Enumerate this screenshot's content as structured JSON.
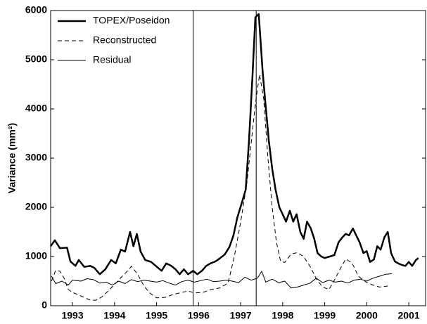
{
  "chart_data": {
    "type": "line",
    "y_label": "Variance (mm²)",
    "xlim": [
      1992.48,
      2001.4
    ],
    "xticks": [
      1993,
      1994,
      1995,
      1996,
      1997,
      1998,
      1999,
      2000,
      2001
    ],
    "ylim": [
      0,
      6000
    ],
    "yticks": [
      0,
      1000,
      2000,
      3000,
      4000,
      5000,
      6000
    ],
    "vlines": [
      1995.87,
      1997.37
    ],
    "legend": "upper left",
    "series": [
      {
        "name": "TOPEX/Poseidon",
        "color": "#000000",
        "style": "solid",
        "width": 2.5,
        "x": [
          1992.48,
          1992.58,
          1992.7,
          1992.87,
          1992.95,
          1993.07,
          1993.15,
          1993.28,
          1993.42,
          1993.52,
          1993.65,
          1993.78,
          1993.92,
          1994.03,
          1994.15,
          1994.25,
          1994.37,
          1994.45,
          1994.53,
          1994.62,
          1994.73,
          1994.87,
          1994.98,
          1995.12,
          1995.23,
          1995.35,
          1995.45,
          1995.55,
          1995.65,
          1995.75,
          1995.87,
          1995.97,
          1996.08,
          1996.18,
          1996.28,
          1996.4,
          1996.5,
          1996.62,
          1996.73,
          1996.83,
          1996.92,
          1997.02,
          1997.12,
          1997.2,
          1997.28,
          1997.35,
          1997.43,
          1997.52,
          1997.58,
          1997.67,
          1997.75,
          1997.83,
          1997.92,
          1998.0,
          1998.08,
          1998.17,
          1998.25,
          1998.33,
          1998.42,
          1998.5,
          1998.58,
          1998.67,
          1998.75,
          1998.83,
          1998.92,
          1999.0,
          1999.12,
          1999.23,
          1999.33,
          1999.42,
          1999.5,
          1999.58,
          1999.67,
          1999.75,
          1999.83,
          1999.92,
          2000.0,
          2000.08,
          2000.17,
          2000.25,
          2000.33,
          2000.42,
          2000.5,
          2000.58,
          2000.67,
          2000.75,
          2000.83,
          2000.92,
          2001.0,
          2001.08,
          2001.17,
          2001.23
        ],
        "values": [
          1210,
          1330,
          1170,
          1180,
          900,
          810,
          930,
          790,
          810,
          770,
          640,
          740,
          930,
          860,
          1140,
          1100,
          1500,
          1210,
          1460,
          1100,
          930,
          890,
          810,
          710,
          860,
          810,
          740,
          640,
          740,
          640,
          710,
          640,
          710,
          810,
          860,
          900,
          960,
          1040,
          1190,
          1430,
          1790,
          2070,
          2360,
          3360,
          4640,
          5860,
          5930,
          4790,
          4210,
          3360,
          2790,
          2360,
          2000,
          1860,
          1710,
          1930,
          1710,
          1860,
          1500,
          1360,
          1710,
          1570,
          1360,
          1070,
          1000,
          970,
          1000,
          1030,
          1290,
          1390,
          1460,
          1430,
          1570,
          1430,
          1290,
          1070,
          1110,
          890,
          940,
          1210,
          1140,
          1390,
          1500,
          1070,
          900,
          860,
          830,
          810,
          890,
          810,
          930,
          970
        ]
      },
      {
        "name": "Reconstructed",
        "color": "#000000",
        "style": "dashed",
        "width": 1,
        "x": [
          1992.5,
          1992.6,
          1992.7,
          1992.8,
          1992.9,
          1993.0,
          1993.2,
          1993.4,
          1993.55,
          1993.7,
          1993.85,
          1994.0,
          1994.15,
          1994.3,
          1994.4,
          1994.55,
          1994.7,
          1994.85,
          1995.0,
          1995.2,
          1995.4,
          1995.6,
          1995.75,
          1995.9,
          1996.1,
          1996.3,
          1996.5,
          1996.7,
          1996.85,
          1997.0,
          1997.15,
          1997.25,
          1997.35,
          1997.45,
          1997.55,
          1997.65,
          1997.75,
          1997.85,
          1997.95,
          1998.05,
          1998.2,
          1998.35,
          1998.5,
          1998.65,
          1998.8,
          1998.95,
          1999.1,
          1999.25,
          1999.4,
          1999.5,
          1999.65,
          1999.8,
          2000.0,
          2000.15,
          2000.3,
          2000.5
        ],
        "values": [
          500,
          720,
          700,
          560,
          330,
          270,
          200,
          120,
          110,
          180,
          300,
          430,
          570,
          700,
          800,
          640,
          400,
          250,
          160,
          170,
          230,
          270,
          300,
          260,
          270,
          330,
          360,
          460,
          1000,
          1700,
          2500,
          3300,
          4100,
          4700,
          4200,
          3000,
          2000,
          1300,
          900,
          880,
          1050,
          1080,
          1000,
          800,
          550,
          380,
          330,
          550,
          800,
          950,
          870,
          600,
          470,
          420,
          380,
          400
        ]
      },
      {
        "name": "Residual",
        "color": "#000000",
        "style": "solid",
        "width": 1,
        "x": [
          1992.5,
          1992.6,
          1992.75,
          1992.9,
          1993.0,
          1993.2,
          1993.35,
          1993.5,
          1993.65,
          1993.8,
          1993.95,
          1994.1,
          1994.25,
          1994.4,
          1994.55,
          1994.7,
          1994.85,
          1995.0,
          1995.15,
          1995.3,
          1995.45,
          1995.6,
          1995.75,
          1995.9,
          1996.05,
          1996.2,
          1996.35,
          1996.5,
          1996.65,
          1996.8,
          1996.95,
          1997.1,
          1997.25,
          1997.4,
          1997.5,
          1997.6,
          1997.75,
          1997.9,
          1998.05,
          1998.2,
          1998.35,
          1998.5,
          1998.65,
          1998.8,
          1998.95,
          1999.1,
          1999.25,
          1999.4,
          1999.55,
          1999.7,
          1999.85,
          2000.0,
          2000.15,
          2000.3,
          2000.45,
          2000.6
        ],
        "values": [
          600,
          450,
          500,
          420,
          520,
          500,
          550,
          530,
          460,
          480,
          420,
          500,
          450,
          530,
          490,
          520,
          500,
          480,
          510,
          460,
          420,
          490,
          520,
          480,
          510,
          540,
          490,
          500,
          520,
          500,
          470,
          580,
          520,
          560,
          700,
          480,
          540,
          470,
          500,
          360,
          380,
          420,
          460,
          560,
          470,
          520,
          480,
          500,
          460,
          520,
          540,
          500,
          560,
          600,
          640,
          650
        ]
      }
    ]
  }
}
